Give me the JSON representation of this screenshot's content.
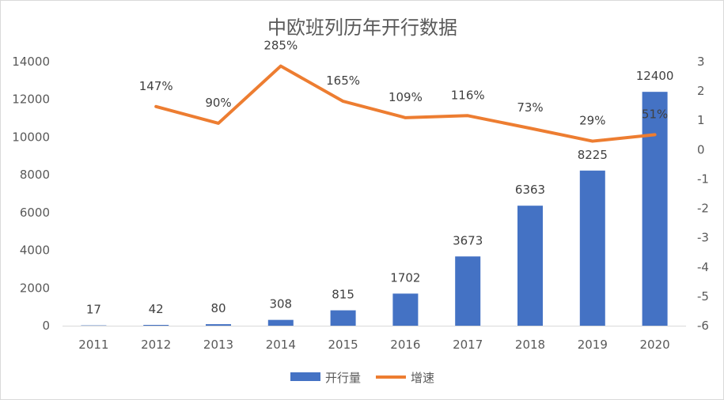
{
  "chart_data": {
    "type": "bar+line",
    "title": "中欧班列历年开行数据",
    "categories": [
      "2011",
      "2012",
      "2013",
      "2014",
      "2015",
      "2016",
      "2017",
      "2018",
      "2019",
      "2020"
    ],
    "series": [
      {
        "name": "开行量",
        "type": "bar",
        "axis": "left",
        "color": "#4472C4",
        "values": [
          17,
          42,
          80,
          308,
          815,
          1702,
          3673,
          6363,
          8225,
          12400
        ],
        "labels": [
          "17",
          "42",
          "80",
          "308",
          "815",
          "1702",
          "3673",
          "6363",
          "8225",
          "12400"
        ]
      },
      {
        "name": "增速",
        "type": "line",
        "axis": "right",
        "color": "#ED7D31",
        "values": [
          null,
          1.47,
          0.9,
          2.85,
          1.65,
          1.09,
          1.16,
          0.73,
          0.29,
          0.51
        ],
        "labels": [
          "",
          "147%",
          "90%",
          "285%",
          "165%",
          "109%",
          "116%",
          "73%",
          "29%",
          "51%"
        ]
      }
    ],
    "y_left": {
      "min": 0,
      "max": 14000,
      "ticks": [
        0,
        2000,
        4000,
        6000,
        8000,
        10000,
        12000,
        14000
      ]
    },
    "y_right": {
      "min": -6,
      "max": 3,
      "ticks": [
        -6,
        -5,
        -4,
        -3,
        -2,
        -1,
        0,
        1,
        2,
        3
      ]
    },
    "grid": false,
    "legend_position": "bottom-center"
  }
}
